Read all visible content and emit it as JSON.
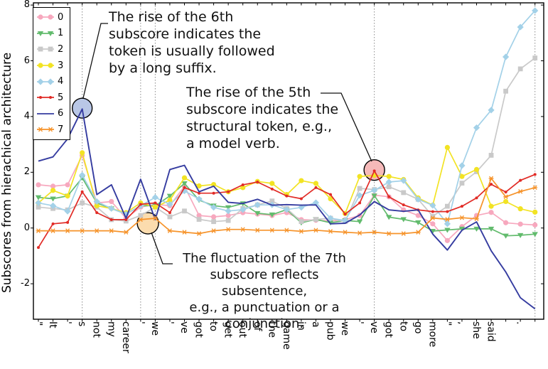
{
  "figure": {
    "background": "#ffffff",
    "axis_color": "#000000",
    "gridline_color": "#8a8a8a",
    "annotation_text_color": "#111111"
  },
  "chart_data": {
    "type": "line",
    "title": "",
    "xlabel": "",
    "ylabel": "Subscores from hierachical architecture",
    "ylim": [
      -3.27,
      8.08
    ],
    "yticks": [
      -2,
      0,
      2,
      4,
      6,
      8
    ],
    "grid": "dotted vertical lines at annotated tokens only",
    "gridline_indices": [
      3,
      7,
      8,
      23,
      34
    ],
    "legend_position": "upper left",
    "categories": [
      "\"",
      "It",
      "'",
      "s",
      "not",
      "my",
      "career",
      "'",
      "we",
      "'",
      "ve",
      "got",
      "to",
      "get",
      "out",
      "of",
      "the",
      "game",
      "in",
      "a",
      "pub",
      "we",
      "'",
      "ve",
      "got",
      "to",
      "go",
      "more",
      "\"",
      ",",
      "she",
      "said",
      "",
      ".",
      ""
    ],
    "series": [
      {
        "name": "0",
        "color": "#F7A8BE",
        "marker": "circle",
        "values": [
          1.55,
          1.5,
          1.55,
          2.6,
          0.9,
          0.95,
          0.35,
          0.75,
          0.85,
          0.8,
          1.5,
          0.45,
          0.4,
          0.45,
          0.55,
          0.5,
          0.45,
          0.55,
          0.3,
          0.28,
          0.25,
          0.3,
          0.45,
          1.18,
          1.12,
          0.65,
          0.45,
          0.15,
          -0.45,
          0.05,
          0.45,
          0.56,
          0.19,
          0.14,
          0.11
        ]
      },
      {
        "name": "1",
        "color": "#62BB6D",
        "marker": "triangle-down",
        "values": [
          1.1,
          1.05,
          1.15,
          1.8,
          0.9,
          0.7,
          0.5,
          0.8,
          0.8,
          1.15,
          1.6,
          1.0,
          0.8,
          0.74,
          0.88,
          0.53,
          0.48,
          0.66,
          0.19,
          0.31,
          0.19,
          0.27,
          0.23,
          1.16,
          0.39,
          0.31,
          0.2,
          -0.11,
          -0.07,
          -0.03,
          -0.03,
          -0.03,
          -0.28,
          -0.26,
          -0.22
        ]
      },
      {
        "name": "2",
        "color": "#C9C9C9",
        "marker": "square",
        "values": [
          0.75,
          0.7,
          0.65,
          0.9,
          0.75,
          0.3,
          0.25,
          0.45,
          0.75,
          0.4,
          0.61,
          0.31,
          0.23,
          0.27,
          0.7,
          0.83,
          0.97,
          0.7,
          0.23,
          0.31,
          0.35,
          0.23,
          1.42,
          1.38,
          1.48,
          1.27,
          1.03,
          0.42,
          0.78,
          1.61,
          2.02,
          2.61,
          4.91,
          5.71,
          6.1
        ]
      },
      {
        "name": "3",
        "color": "#F2E324",
        "marker": "circle",
        "values": [
          0.9,
          1.35,
          1.15,
          2.7,
          0.8,
          0.7,
          0.55,
          0.9,
          0.75,
          1.0,
          1.8,
          1.51,
          1.56,
          1.3,
          1.45,
          1.67,
          1.6,
          1.2,
          1.7,
          1.6,
          1.05,
          0.52,
          1.85,
          1.89,
          1.85,
          1.74,
          1.08,
          0.82,
          2.89,
          1.85,
          2.1,
          0.78,
          0.95,
          0.69,
          0.57
        ]
      },
      {
        "name": "4",
        "color": "#A3D1E8",
        "marker": "diamond",
        "values": [
          0.9,
          0.8,
          0.6,
          1.9,
          0.95,
          0.7,
          0.5,
          0.8,
          1.1,
          0.85,
          1.33,
          1.04,
          0.74,
          0.61,
          0.66,
          0.83,
          0.83,
          0.66,
          0.74,
          0.91,
          0.35,
          0.27,
          1.17,
          1.35,
          1.65,
          1.7,
          1.03,
          0.81,
          0.15,
          2.24,
          3.6,
          4.23,
          6.14,
          7.21,
          7.8
        ]
      },
      {
        "name": "5",
        "color": "#E12B26",
        "marker": "dot",
        "values": [
          -0.7,
          0.15,
          0.2,
          1.3,
          0.55,
          0.3,
          0.3,
          0.85,
          0.9,
          0.55,
          1.45,
          1.25,
          1.25,
          1.3,
          1.55,
          1.65,
          1.4,
          1.15,
          1.05,
          1.45,
          1.2,
          0.5,
          0.9,
          2.05,
          1.12,
          0.83,
          0.65,
          0.59,
          0.59,
          0.78,
          1.08,
          1.57,
          1.29,
          1.71,
          1.92
        ]
      },
      {
        "name": "6",
        "color": "#353CA0",
        "marker": "none",
        "values": [
          2.4,
          2.55,
          3.2,
          4.27,
          1.2,
          1.55,
          0.35,
          1.75,
          0.3,
          2.1,
          2.25,
          1.3,
          1.5,
          0.92,
          0.88,
          1.03,
          0.82,
          0.84,
          0.82,
          0.83,
          0.15,
          0.17,
          0.47,
          0.95,
          0.65,
          0.6,
          0.65,
          -0.22,
          -0.79,
          -0.08,
          0.22,
          -0.82,
          -1.58,
          -2.5,
          -2.9
        ]
      },
      {
        "name": "7",
        "color": "#F6932A",
        "marker": "star",
        "values": [
          -0.1,
          -0.1,
          -0.1,
          -0.1,
          -0.1,
          -0.1,
          -0.15,
          0.3,
          0.35,
          -0.1,
          -0.15,
          -0.2,
          -0.1,
          -0.05,
          -0.05,
          -0.08,
          -0.08,
          -0.08,
          -0.12,
          -0.08,
          -0.12,
          -0.15,
          -0.18,
          -0.15,
          -0.2,
          -0.2,
          -0.15,
          0.36,
          0.31,
          0.37,
          0.33,
          1.78,
          1.12,
          1.31,
          1.45
        ]
      }
    ],
    "annotations": [
      {
        "text": "The rise of the 6th\nsubscore indicates the\ntoken is usually followed\nby a long suffix.",
        "target_series": "6",
        "target_index": 3,
        "target_token": "s",
        "target_value": 4.3,
        "circle_fill": "#b9c7e6"
      },
      {
        "text": "The rise of the 5th\nsubscore indicates the\nstructural token, e.g.,\na model verb.",
        "target_series": "5",
        "target_index": 23,
        "target_token": "ve",
        "target_value": 2.08,
        "circle_fill": "#f5b9b9"
      },
      {
        "text": "The fluctuation of the 7th\nsubscore reflects subsentence,\ne.g., a punctuation or a conjunction.",
        "target_series": "7",
        "target_index": 7.5,
        "target_token": "' we",
        "target_value": 0.17,
        "circle_fill": "#fbdcae"
      }
    ],
    "legend_entries": [
      "0",
      "1",
      "2",
      "3",
      "4",
      "5",
      "6",
      "7"
    ]
  }
}
